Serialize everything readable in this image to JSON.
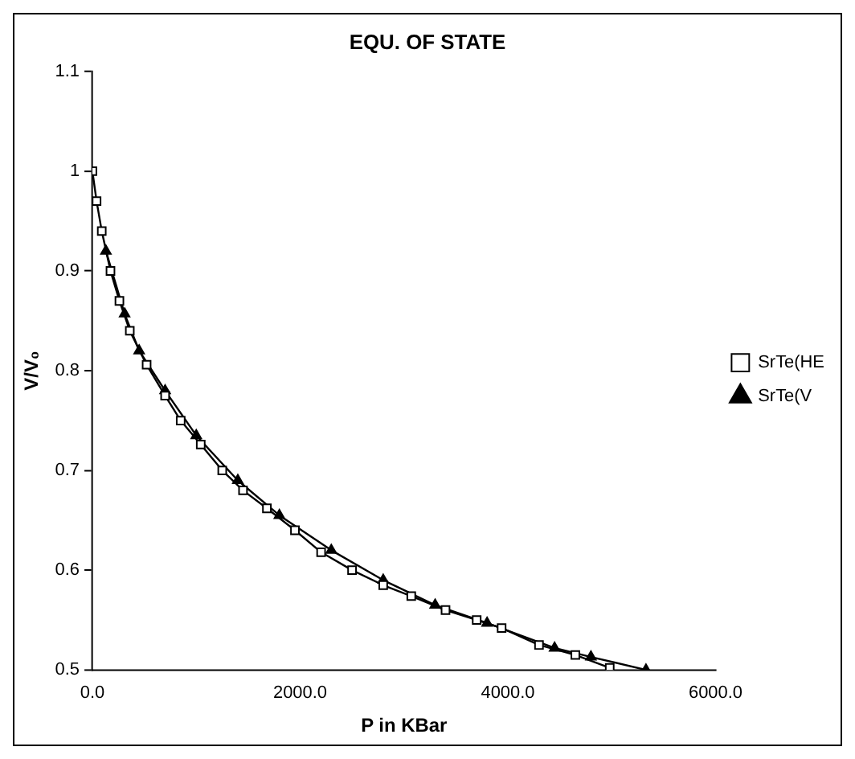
{
  "chart_data": {
    "type": "line",
    "title": "EQU. OF STATE",
    "xlabel": "P in KBar",
    "ylabel": "V/V₀",
    "xlim": [
      0,
      6000
    ],
    "xticks": [
      {
        "value": 0,
        "label": "0.0"
      },
      {
        "value": 2000,
        "label": "2000.0"
      },
      {
        "value": 4000,
        "label": "4000.0"
      },
      {
        "value": 6000,
        "label": "6000.0"
      }
    ],
    "ylim": [
      0.5,
      1.1
    ],
    "yticks": [
      0.5,
      0.6,
      0.7,
      0.8,
      0.9,
      1,
      1.1
    ],
    "grid": false,
    "legend": "right",
    "series": [
      {
        "name": "SrTe(HE",
        "color": "#000000",
        "marker": "square",
        "x": [
          0,
          40,
          90,
          174,
          260,
          360,
          522,
          700,
          850,
          1043,
          1250,
          1450,
          1680,
          1950,
          2202,
          2500,
          2800,
          3070,
          3400,
          3700,
          3940,
          4300,
          4650,
          4981
        ],
        "values": [
          1.0,
          0.97,
          0.94,
          0.9,
          0.87,
          0.84,
          0.806,
          0.775,
          0.75,
          0.726,
          0.7,
          0.68,
          0.662,
          0.64,
          0.618,
          0.6,
          0.585,
          0.574,
          0.56,
          0.55,
          0.542,
          0.525,
          0.515,
          0.502
        ]
      },
      {
        "name": "SrTe(V",
        "color": "#000000",
        "marker": "triangle",
        "x": [
          130,
          310,
          450,
          700,
          1000,
          1400,
          1800,
          2300,
          2800,
          3300,
          3800,
          4450,
          4800,
          5330
        ],
        "values": [
          0.92,
          0.857,
          0.82,
          0.78,
          0.735,
          0.69,
          0.655,
          0.62,
          0.59,
          0.565,
          0.547,
          0.522,
          0.513,
          0.5
        ]
      }
    ]
  }
}
